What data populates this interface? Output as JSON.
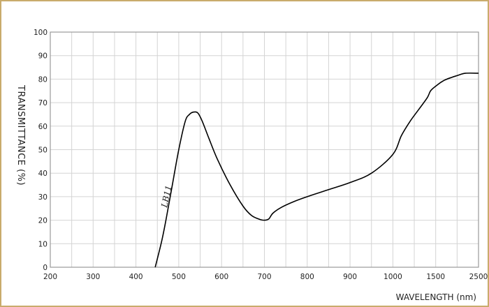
{
  "chart_data": {
    "type": "line",
    "xlabel": "WAVELENGTH (nm)",
    "ylabel": "TRANSMITTANCE  (%)",
    "x_ticks": [
      "200",
      "300",
      "400",
      "500",
      "600",
      "700",
      "800",
      "900",
      "1000",
      "1500",
      "2500"
    ],
    "x_tick_values": [
      200,
      300,
      400,
      500,
      600,
      700,
      800,
      900,
      1000,
      1500,
      2500
    ],
    "y_ticks": [
      "0",
      "10",
      "20",
      "30",
      "40",
      "50",
      "60",
      "70",
      "80",
      "90",
      "100"
    ],
    "ylim": [
      0,
      100
    ],
    "xlim": [
      200,
      2500
    ],
    "x_scale": "piecewise (100 nm steps to 1000, then 1500, 2500)",
    "grid": true,
    "series": [
      {
        "name": "LB11",
        "color": "#000000",
        "x": [
          445,
          460,
          470,
          485,
          500,
          515,
          525,
          535,
          545,
          555,
          570,
          590,
          620,
          650,
          670,
          690,
          700,
          710,
          720,
          740,
          770,
          800,
          850,
          900,
          950,
          1000,
          1100,
          1200,
          1300,
          1400,
          1440,
          1500,
          1700,
          2000,
          2200,
          2500
        ],
        "y": [
          0,
          11,
          20,
          35,
          50,
          62,
          65,
          66,
          65.5,
          62,
          55,
          46,
          35,
          26,
          22,
          20.3,
          20,
          20.5,
          23,
          25.5,
          28,
          30,
          33,
          36,
          40,
          48,
          56,
          62,
          67,
          72,
          75,
          77,
          79.5,
          81.5,
          82.5,
          82.5
        ]
      }
    ]
  }
}
